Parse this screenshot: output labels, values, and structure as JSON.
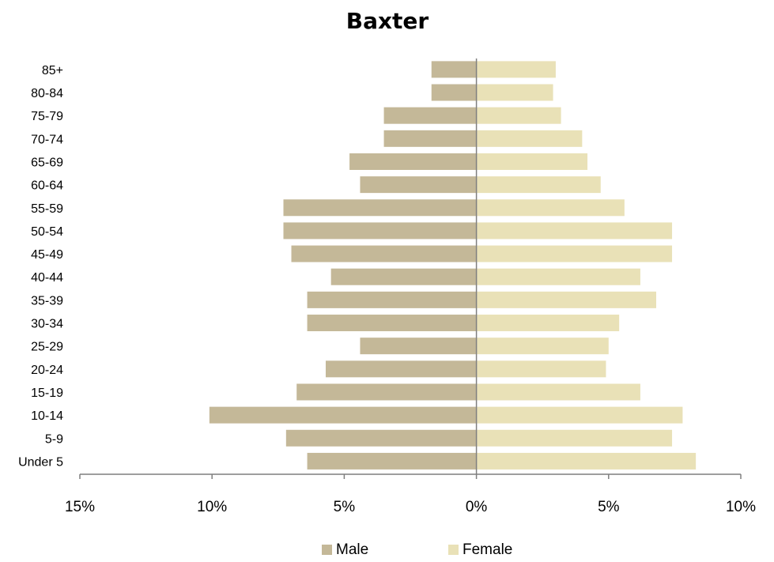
{
  "chart_data": {
    "type": "bar",
    "orientation": "horizontal",
    "subtype": "population-pyramid",
    "title": "Baxter",
    "categories": [
      "Under 5",
      "5-9",
      "10-14",
      "15-19",
      "20-24",
      "25-29",
      "30-34",
      "35-39",
      "40-44",
      "45-49",
      "50-54",
      "55-59",
      "60-64",
      "65-69",
      "70-74",
      "75-79",
      "80-84",
      "85+"
    ],
    "series": [
      {
        "name": "Male",
        "color": "#c4b898",
        "values": [
          6.4,
          7.2,
          10.1,
          6.8,
          5.7,
          4.4,
          6.4,
          6.4,
          5.5,
          7.0,
          7.3,
          7.3,
          4.4,
          4.8,
          3.5,
          3.5,
          1.7,
          1.7
        ]
      },
      {
        "name": "Female",
        "color": "#e9e1b7",
        "values": [
          8.3,
          7.4,
          7.8,
          6.2,
          4.9,
          5.0,
          5.4,
          6.8,
          6.2,
          7.4,
          7.4,
          5.6,
          4.7,
          4.2,
          4.0,
          3.2,
          2.9,
          3.0
        ]
      }
    ],
    "xlim": [
      -15,
      10
    ],
    "xticks": [
      -15,
      -10,
      -5,
      0,
      5,
      10
    ],
    "xtick_labels": [
      "15%",
      "10%",
      "5%",
      "0%",
      "5%",
      "10%"
    ],
    "xlabel": "",
    "ylabel": "",
    "grid": false,
    "legend_position": "bottom"
  }
}
